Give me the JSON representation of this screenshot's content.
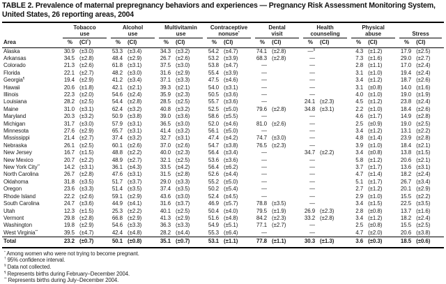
{
  "title": "TABLE 2. Prevalence of maternal prepregnancy behaviors and experiences — Pregnancy Risk Assessment Monitoring System, United States, 26 reporting areas, 2004",
  "table": {
    "area_header": "Area",
    "groups": [
      {
        "line1": "Tobacco",
        "line2": "use",
        "pct": "%",
        "ci": "(CI†)"
      },
      {
        "line1": "Alcohol",
        "line2": "use",
        "pct": "%",
        "ci": "(CI)"
      },
      {
        "line1": "Multivitamin",
        "line2": "use",
        "pct": "%",
        "ci": "(CI)"
      },
      {
        "line1": "Contraceptive",
        "line2": "nonuse*",
        "pct": "%",
        "ci": "(CI)"
      },
      {
        "line1": "Dental",
        "line2": "visit",
        "pct": "%",
        "ci": "(CI)"
      },
      {
        "line1": "Health",
        "line2": "counseling",
        "pct": "%",
        "ci": "(CI)"
      },
      {
        "line1": "Physical",
        "line2": "abuse",
        "pct": "%",
        "ci": "(CI)"
      },
      {
        "line1": "",
        "line2": "Stress",
        "pct": "%",
        "ci": "(CI)"
      }
    ],
    "rows": [
      {
        "area": "Alaska",
        "values": [
          "30.9",
          "(±3.0)",
          "53.3",
          "(±3.4)",
          "34.3",
          "(±3.2)",
          "54.2",
          "(±4.7)",
          "74.1",
          "(±2.8)",
          "—§",
          "",
          "4.3",
          "(±1.2)",
          "17.9",
          "(±2.5)"
        ]
      },
      {
        "area": "Arkansas",
        "values": [
          "34.5",
          "(±2.8)",
          "48.4",
          "(±2.9)",
          "26.7",
          "(±2.6)",
          "53.2",
          "(±3.9)",
          "68.3",
          "(±2.8)",
          "—",
          "",
          "7.3",
          "(±1.6)",
          "29.0",
          "(±2.7)"
        ]
      },
      {
        "area": "Colorado",
        "values": [
          "21.3",
          "(±2.6)",
          "61.8",
          "(±3.1)",
          "37.5",
          "(±3.0)",
          "53.8",
          "(±4.7)",
          "—",
          "",
          "—",
          "",
          "2.8",
          "(±1.1)",
          "17.0",
          "(±2.4)"
        ]
      },
      {
        "area": "Florida",
        "values": [
          "22.1",
          "(±2.7)",
          "48.2",
          "(±3.0)",
          "31.6",
          "(±2.9)",
          "55.4",
          "(±3.9)",
          "—",
          "",
          "—",
          "",
          "3.1",
          "(±1.0)",
          "19.4",
          "(±2.4)"
        ]
      },
      {
        "area": "Georgia¶",
        "values": [
          "19.4",
          "(±2.9)",
          "41.2",
          "(±3.4)",
          "37.1",
          "(±3.3)",
          "47.5",
          "(±4.6)",
          "—",
          "",
          "—",
          "",
          "3.4",
          "(±1.2)",
          "18.7",
          "(±2.6)"
        ]
      },
      {
        "area": "Hawaii",
        "values": [
          "20.6",
          "(±1.8)",
          "42.1",
          "(±2.1)",
          "39.3",
          "(±2.1)",
          "54.0",
          "(±3.1)",
          "—",
          "",
          "—",
          "",
          "3.1",
          "(±0.8)",
          "14.0",
          "(±1.6)"
        ]
      },
      {
        "area": "Illinois",
        "values": [
          "22.3",
          "(±2.0)",
          "54.6",
          "(±2.4)",
          "35.9",
          "(±2.3)",
          "50.5",
          "(±3.6)",
          "—",
          "",
          "—",
          "",
          "4.0",
          "(±1.0)",
          "19.0",
          "(±1.9)"
        ]
      },
      {
        "area": "Louisiana",
        "values": [
          "28.2",
          "(±2.5)",
          "54.4",
          "(±2.8)",
          "28.5",
          "(±2.5)",
          "55.7",
          "(±3.6)",
          "—",
          "",
          "24.1",
          "(±2.3)",
          "4.5",
          "(±1.2)",
          "23.8",
          "(±2.4)"
        ]
      },
      {
        "area": "Maine",
        "values": [
          "31.0",
          "(±3.1)",
          "62.4",
          "(±3.2)",
          "40.8",
          "(±3.2)",
          "52.5",
          "(±5.0)",
          "79.6",
          "(±2.8)",
          "34.8",
          "(±3.1)",
          "2.2",
          "(±1.0)",
          "18.4",
          "(±2.6)"
        ]
      },
      {
        "area": "Maryland",
        "values": [
          "20.3",
          "(±3.2)",
          "50.9",
          "(±3.8)",
          "39.0",
          "(±3.6)",
          "58.6",
          "(±5.5)",
          "—",
          "",
          "—",
          "",
          "4.6",
          "(±1.7)",
          "14.9",
          "(±2.8)"
        ]
      },
      {
        "area": "Michigan",
        "values": [
          "31.7",
          "(±3.0)",
          "57.9",
          "(±3.1)",
          "36.5",
          "(±3.0)",
          "52.0",
          "(±4.6)",
          "81.0",
          "(±2.6)",
          "—",
          "",
          "2.5",
          "(±0.9)",
          "19.0",
          "(±2.5)"
        ]
      },
      {
        "area": "Minnesota",
        "values": [
          "27.6",
          "(±2.9)",
          "65.7",
          "(±3.1)",
          "41.4",
          "(±3.2)",
          "56.1",
          "(±5.0)",
          "—",
          "",
          "—",
          "",
          "3.4",
          "(±1.2)",
          "13.1",
          "(±2.2)"
        ]
      },
      {
        "area": "Mississippi",
        "values": [
          "21.4",
          "(±2.7)",
          "37.4",
          "(±3.2)",
          "32.7",
          "(±3.1)",
          "47.4",
          "(±4.2)",
          "74.7",
          "(±3.0)",
          "—",
          "",
          "4.8",
          "(±1.4)",
          "23.9",
          "(±2.8)"
        ]
      },
      {
        "area": "Nebraska",
        "values": [
          "26.1",
          "(±2.5)",
          "60.1",
          "(±2.6)",
          "37.0",
          "(±2.6)",
          "54.7",
          "(±3.8)",
          "76.5",
          "(±2.3)",
          "—",
          "",
          "3.9",
          "(±1.0)",
          "18.4",
          "(±2.1)"
        ]
      },
      {
        "area": "New Jersey",
        "values": [
          "16.7",
          "(±1.5)",
          "48.8",
          "(±2.2)",
          "40.0",
          "(±2.3)",
          "56.4",
          "(±3.4)",
          "—",
          "",
          "34.7",
          "(±2.2)",
          "3.4",
          "(±0.8)",
          "13.8",
          "(±1.5)"
        ]
      },
      {
        "area": "New Mexico",
        "values": [
          "20.7",
          "(±2.2)",
          "48.9",
          "(±2.7)",
          "32.1",
          "(±2.5)",
          "53.6",
          "(±3.6)",
          "—",
          "",
          "—",
          "",
          "5.8",
          "(±1.2)",
          "20.6",
          "(±2.1)"
        ]
      },
      {
        "area": "New York City**",
        "values": [
          "14.2",
          "(±3.1)",
          "36.1",
          "(±4.3)",
          "33.5",
          "(±4.2)",
          "56.4",
          "(±6.2)",
          "—",
          "",
          "—",
          "",
          "3.7",
          "(±1.7)",
          "13.6",
          "(±3.1)"
        ]
      },
      {
        "area": "North Carolina",
        "values": [
          "26.7",
          "(±2.8)",
          "47.6",
          "(±3.1)",
          "31.5",
          "(±2.8)",
          "52.6",
          "(±4.4)",
          "—",
          "",
          "—",
          "",
          "4.7",
          "(±1.4)",
          "18.2",
          "(±2.4)"
        ]
      },
      {
        "area": "Oklahoma",
        "values": [
          "31.8",
          "(±3.5)",
          "51.7",
          "(±3.7)",
          "29.0",
          "(±3.3)",
          "55.2",
          "(±5.0)",
          "—",
          "",
          "—",
          "",
          "5.1",
          "(±1.7)",
          "26.7",
          "(±3.4)"
        ]
      },
      {
        "area": "Oregon",
        "values": [
          "23.6",
          "(±3.3)",
          "51.4",
          "(±3.5)",
          "37.4",
          "(±3.5)",
          "50.2",
          "(±5.4)",
          "—",
          "",
          "—",
          "",
          "2.7",
          "(±1.2)",
          "20.1",
          "(±2.9)"
        ]
      },
      {
        "area": "Rhode Island",
        "values": [
          "22.2",
          "(±2.6)",
          "59.1",
          "(±2.9)",
          "43.6",
          "(±3.0)",
          "52.4",
          "(±4.5)",
          "—",
          "",
          "—",
          "",
          "2.9",
          "(±1.0)",
          "15.5",
          "(±2.2)"
        ]
      },
      {
        "area": "South Carolina",
        "values": [
          "24.7",
          "(±3.6)",
          "44.9",
          "(±4.1)",
          "31.6",
          "(±3.7)",
          "46.9",
          "(±5.7)",
          "78.8",
          "(±3.5)",
          "—",
          "",
          "3.4",
          "(±1.5)",
          "22.5",
          "(±3.5)"
        ]
      },
      {
        "area": "Utah",
        "values": [
          "12.3",
          "(±1.5)",
          "25.3",
          "(±2.2)",
          "40.1",
          "(±2.5)",
          "50.4",
          "(±4.0)",
          "79.5",
          "(±1.9)",
          "26.9",
          "(±2.3)",
          "2.8",
          "(±0.8)",
          "13.7",
          "(±1.6)"
        ]
      },
      {
        "area": "Vermont",
        "values": [
          "29.8",
          "(±2.8)",
          "66.8",
          "(±2.9)",
          "41.3",
          "(±2.9)",
          "51.6",
          "(±4.8)",
          "84.2",
          "(±2.3)",
          "33.2",
          "(±2.8)",
          "3.4",
          "(±1.2)",
          "18.2",
          "(±2.4)"
        ]
      },
      {
        "area": "Washington",
        "values": [
          "19.8",
          "(±2.9)",
          "54.6",
          "(±3.3)",
          "36.3",
          "(±3.3)",
          "54.9",
          "(±5.1)",
          "77.1",
          "(±2.7)",
          "—",
          "",
          "2.5",
          "(±0.8)",
          "15.5",
          "(±2.5)"
        ]
      },
      {
        "area": "West Virginia**",
        "values": [
          "39.5",
          "(±4.7)",
          "42.4",
          "(±4.8)",
          "28.2",
          "(±4.4)",
          "55.3",
          "(±6.4)",
          "—",
          "",
          "—",
          "",
          "4.7",
          "(±2.0)",
          "20.6",
          "(±3.8)"
        ]
      }
    ],
    "total_row": {
      "area": "Total",
      "values": [
        "23.2",
        "(±0.7)",
        "50.1",
        "(±0.8)",
        "35.1",
        "(±0.7)",
        "53.1",
        "(±1.1)",
        "77.8",
        "(±1.1)",
        "30.3",
        "(±1.3)",
        "3.6",
        "(±0.3)",
        "18.5",
        "(±0.6)"
      ]
    }
  },
  "footnotes": [
    {
      "marker": "*",
      "text": "Among women who were not trying to become pregnant."
    },
    {
      "marker": "†",
      "text": "95% confidence interval."
    },
    {
      "marker": "§",
      "text": "Data not collected."
    },
    {
      "marker": "¶",
      "text": "Represents births during February–December 2004."
    },
    {
      "marker": "**",
      "text": "Represents births during July–December 2004."
    }
  ]
}
